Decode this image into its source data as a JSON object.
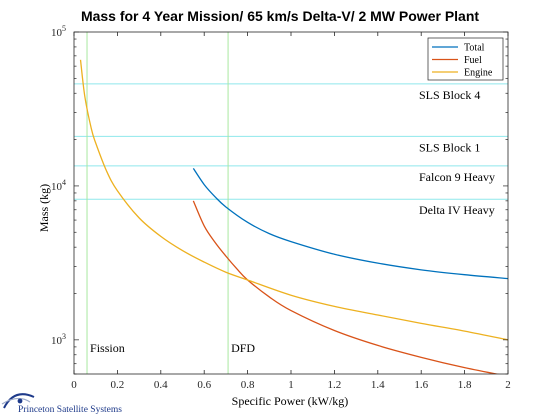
{
  "chart_data": {
    "type": "line",
    "title": "Mass for 4 Year Mission/ 65 km/s Delta-V/ 2 MW Power Plant",
    "xlabel": "Specific Power (kW/kg)",
    "ylabel": "Mass (kg)",
    "xlim": [
      0,
      2
    ],
    "ylim": [
      600,
      100000
    ],
    "yscale": "log",
    "grid": false,
    "legend_position": "top-right",
    "x_ticks": [
      0,
      0.2,
      0.4,
      0.6,
      0.8,
      1,
      1.2,
      1.4,
      1.6,
      1.8,
      2
    ],
    "x_tick_labels": [
      "0",
      "0.2",
      "0.4",
      "0.6",
      "0.8",
      "1",
      "1.2",
      "1.4",
      "1.6",
      "1.8",
      "2"
    ],
    "y_major_ticks": [
      1000,
      10000,
      100000
    ],
    "y_tick_labels": [
      {
        "base": "10",
        "exp": "3"
      },
      {
        "base": "10",
        "exp": "4"
      },
      {
        "base": "10",
        "exp": "5"
      }
    ],
    "series": [
      {
        "name": "Total",
        "color": "#0072BD",
        "x": [
          0.55,
          0.6,
          0.65,
          0.7,
          0.8,
          0.9,
          1.0,
          1.2,
          1.4,
          1.6,
          1.8,
          2.0
        ],
        "y": [
          13000,
          10200,
          8500,
          7300,
          5800,
          4900,
          4350,
          3600,
          3150,
          2850,
          2650,
          2500
        ]
      },
      {
        "name": "Fuel",
        "color": "#D95319",
        "x": [
          0.55,
          0.6,
          0.65,
          0.7,
          0.75,
          0.8,
          0.9,
          1.0,
          1.2,
          1.4,
          1.6,
          1.8,
          2.0
        ],
        "y": [
          8000,
          5500,
          4300,
          3500,
          2900,
          2450,
          1900,
          1550,
          1150,
          920,
          770,
          660,
          580
        ]
      },
      {
        "name": "Engine",
        "color": "#EDB120",
        "x": [
          0.03,
          0.05,
          0.08,
          0.1,
          0.15,
          0.2,
          0.3,
          0.4,
          0.5,
          0.6,
          0.7,
          0.8,
          1.0,
          1.2,
          1.4,
          1.6,
          1.8,
          2.0
        ],
        "y": [
          66000,
          38000,
          23500,
          19000,
          12500,
          9300,
          6200,
          4700,
          3800,
          3200,
          2750,
          2450,
          1950,
          1650,
          1450,
          1280,
          1140,
          1000
        ]
      }
    ],
    "hlines": [
      {
        "label": "SLS Block 4",
        "y": 46000,
        "color": "#8FE8EC"
      },
      {
        "label": "SLS Block 1",
        "y": 21000,
        "color": "#8FE8EC"
      },
      {
        "label": "Falcon 9 Heavy",
        "y": 13500,
        "color": "#8FE8EC"
      },
      {
        "label": "Delta IV Heavy",
        "y": 8200,
        "color": "#8FE8EC"
      }
    ],
    "vlines": [
      {
        "label": "Fission",
        "x": 0.06,
        "color": "#A8E8A0"
      },
      {
        "label": "DFD",
        "x": 0.71,
        "color": "#A8E8A0"
      }
    ]
  },
  "footer": {
    "logo_text": "Princeton Satellite Systems",
    "logo_color": "#1E3A8A"
  }
}
